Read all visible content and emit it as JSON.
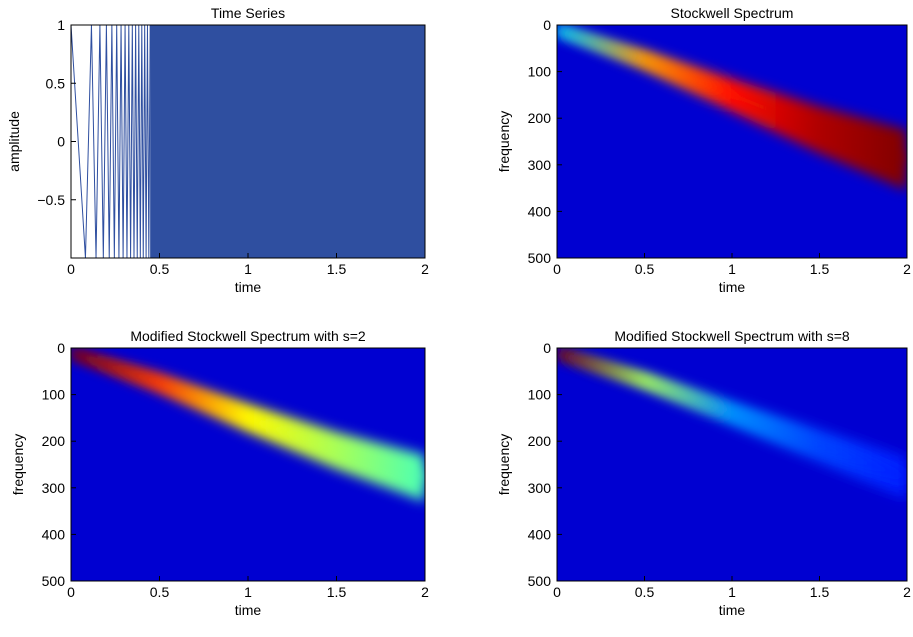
{
  "chart_data": [
    {
      "type": "line",
      "title": "Time Series",
      "xlabel": "time",
      "ylabel": "amplitude",
      "color": "#2f4fa0",
      "x": [
        0,
        0.0816,
        0.1155,
        0.1414,
        0.1633,
        0.1826,
        0.2,
        0.216,
        0.2309,
        0.2449,
        0.2582,
        0.2708,
        0.2828,
        0.2944,
        0.3055,
        0.3162,
        0.3266,
        0.3367,
        0.3464,
        0.3559,
        0.3651,
        0.3742,
        0.383,
        0.3916,
        0.4,
        0.4082,
        0.4163,
        0.4243,
        0.432,
        0.4397,
        0.4472
      ],
      "values": [
        1,
        -1,
        1,
        -1,
        1,
        -1,
        1,
        -1,
        1,
        -1,
        1,
        -1,
        1,
        -1,
        1,
        -1,
        1,
        -1,
        1,
        -1,
        1,
        -1,
        1,
        -1,
        1,
        -1,
        1,
        -1,
        1,
        -1,
        1
      ],
      "band_x": [
        0.4472,
        2
      ],
      "band_upper": [
        1,
        1
      ],
      "band_lower": [
        -1,
        -1
      ],
      "xlim": [
        0,
        2
      ],
      "xticks": [
        0,
        0.5,
        1,
        1.5,
        2
      ],
      "ylim": [
        -1,
        1
      ],
      "yticks": [
        {
          "value": -0.5,
          "label": "−0.5"
        },
        0,
        0.5,
        1
      ]
    },
    {
      "type": "spectrogram",
      "title": "Stockwell Spectrum",
      "xlabel": "time",
      "ylabel": "frequency",
      "x": [
        0,
        0.5,
        1,
        1.5,
        2
      ],
      "values": [
        10,
        75,
        150,
        225,
        290
      ],
      "width": [
        15,
        40,
        70,
        100,
        130
      ],
      "intensity": [
        0.3,
        0.7,
        0.85,
        0.95,
        1
      ],
      "xlim": [
        0,
        2
      ],
      "xticks": [
        0,
        0.5,
        1,
        1.5,
        2
      ],
      "ylim": [
        0,
        500
      ],
      "yticks": [
        0,
        100,
        200,
        300,
        400,
        500
      ],
      "y_reversed": true
    },
    {
      "type": "spectrogram",
      "title": "Modified Stockwell Spectrum with s=2",
      "xlabel": "time",
      "ylabel": "frequency",
      "x": [
        0,
        0.5,
        1,
        1.5,
        2
      ],
      "values": [
        10,
        75,
        150,
        220,
        280
      ],
      "width": [
        15,
        40,
        60,
        80,
        100
      ],
      "intensity": [
        1,
        0.8,
        0.6,
        0.5,
        0.4
      ],
      "xlim": [
        0,
        2
      ],
      "xticks": [
        0,
        0.5,
        1,
        1.5,
        2
      ],
      "ylim": [
        0,
        500
      ],
      "yticks": [
        0,
        100,
        200,
        300,
        400,
        500
      ],
      "y_reversed": true
    },
    {
      "type": "spectrogram",
      "title": "Modified Stockwell Spectrum with s=8",
      "xlabel": "time",
      "ylabel": "frequency",
      "x": [
        0,
        0.5,
        1,
        1.5,
        2
      ],
      "values": [
        10,
        70,
        140,
        210,
        280
      ],
      "width": [
        15,
        30,
        50,
        70,
        90
      ],
      "intensity": [
        1,
        0.5,
        0.2,
        0.12,
        0.08
      ],
      "xlim": [
        0,
        2
      ],
      "xticks": [
        0,
        0.5,
        1,
        1.5,
        2
      ],
      "ylim": [
        0,
        500
      ],
      "yticks": [
        0,
        100,
        200,
        300,
        400,
        500
      ],
      "y_reversed": true
    }
  ]
}
